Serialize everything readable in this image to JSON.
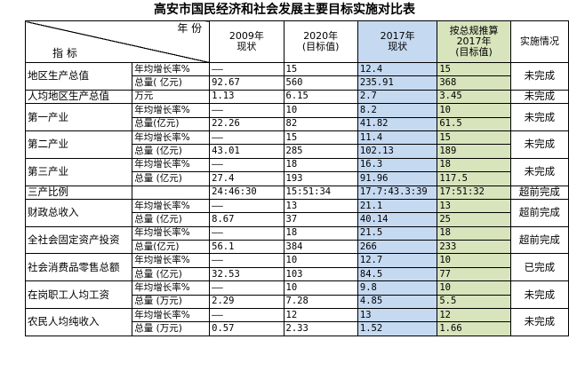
{
  "title": "高安市国民经济和社会发展主要目标实施对比表",
  "header": {
    "year_label": "年 份",
    "indicator_label": "指 标",
    "col_2009": "2009年\n现状",
    "col_2020": "2020年\n(目标值)",
    "col_2017": "2017年\n现状",
    "col_plan": "按总规推算\n2017年\n(目标值)",
    "col_status": "实施情况"
  },
  "colors": {
    "actual_2017": "#c5d9f1",
    "plan_2017": "#d8e4bc"
  },
  "rows": [
    {
      "indicator": "地区生产总值",
      "status": "未完成",
      "subrows": [
        {
          "unit": "年均增长率%",
          "v2009": "——",
          "v2020": "15",
          "v2017": "12.4",
          "plan": "15"
        },
        {
          "unit": "总量( 亿元)",
          "v2009": "92.67",
          "v2020": "560",
          "v2017": "235.91",
          "plan": "368"
        }
      ]
    },
    {
      "indicator": "人均地区生产总值",
      "status": "未完成",
      "subrows": [
        {
          "unit": "万元",
          "v2009": "1.13",
          "v2020": "6.15",
          "v2017": "2.7",
          "plan": "3.45"
        }
      ]
    },
    {
      "indicator": "第一产业",
      "status": "未完成",
      "subrows": [
        {
          "unit": "年均增长率%",
          "v2009": "——",
          "v2020": "10",
          "v2017": "8.2",
          "plan": "10"
        },
        {
          "unit": "总量(亿元)",
          "v2009": "22.26",
          "v2020": "82",
          "v2017": "41.82",
          "plan": "61.5"
        }
      ]
    },
    {
      "indicator": "第二产业",
      "status": "未完成",
      "subrows": [
        {
          "unit": "年均增长率%",
          "v2009": "——",
          "v2020": "15",
          "v2017": "11.4",
          "plan": "15"
        },
        {
          "unit": "总量 (亿元)",
          "v2009": "43.01",
          "v2020": "285",
          "v2017": "102.13",
          "plan": "189"
        }
      ]
    },
    {
      "indicator": "第三产业",
      "status": "未完成",
      "subrows": [
        {
          "unit": "年均增长率%",
          "v2009": "——",
          "v2020": "18",
          "v2017": "16.3",
          "plan": "18"
        },
        {
          "unit": "总量 (亿元)",
          "v2009": "27.4",
          "v2020": "193",
          "v2017": "91.96",
          "plan": "117.5"
        }
      ]
    },
    {
      "indicator": "三产比例",
      "status": "超前完成",
      "subrows": [
        {
          "unit": "",
          "v2009": "24:46:30",
          "v2020": "15:51:34",
          "v2017": "17.7:43.3:39",
          "plan": "17:51:32"
        }
      ]
    },
    {
      "indicator": "财政总收入",
      "status": "超前完成",
      "subrows": [
        {
          "unit": "年均增长率%",
          "v2009": "——",
          "v2020": "13",
          "v2017": "21.1",
          "plan": "13"
        },
        {
          "unit": "总量 (亿元)",
          "v2009": "8.67",
          "v2020": "37",
          "v2017": "40.14",
          "plan": "25"
        }
      ]
    },
    {
      "indicator": "全社会固定资产投资",
      "status": "超前完成",
      "subrows": [
        {
          "unit": "年均增长率%",
          "v2009": "——",
          "v2020": "18",
          "v2017": "21.5",
          "plan": "18"
        },
        {
          "unit": "总量(亿元)",
          "v2009": "56.1",
          "v2020": "384",
          "v2017": "266",
          "plan": "233"
        }
      ]
    },
    {
      "indicator": "社会消费品零售总额",
      "status": "已完成",
      "subrows": [
        {
          "unit": "年均增长率%",
          "v2009": "——",
          "v2020": "10",
          "v2017": "12.7",
          "plan": "10"
        },
        {
          "unit": "总量 (亿元)",
          "v2009": "32.53",
          "v2020": "103",
          "v2017": "84.5",
          "plan": "77"
        }
      ]
    },
    {
      "indicator": "在岗职工人均工资",
      "status": "未完成",
      "subrows": [
        {
          "unit": "年均增长率%",
          "v2009": "——",
          "v2020": "10",
          "v2017": "9.8",
          "plan": "10"
        },
        {
          "unit": "总量 (万元)",
          "v2009": "2.29",
          "v2020": "7.28",
          "v2017": "4.85",
          "plan": "5.5"
        }
      ]
    },
    {
      "indicator": "农民人均纯收入",
      "status": "未完成",
      "subrows": [
        {
          "unit": "年均增长率%",
          "v2009": "——",
          "v2020": "12",
          "v2017": "13",
          "plan": "12"
        },
        {
          "unit": "总量 (万元)",
          "v2009": "0.57",
          "v2020": "2.33",
          "v2017": "1.52",
          "plan": "1.66"
        }
      ]
    }
  ]
}
